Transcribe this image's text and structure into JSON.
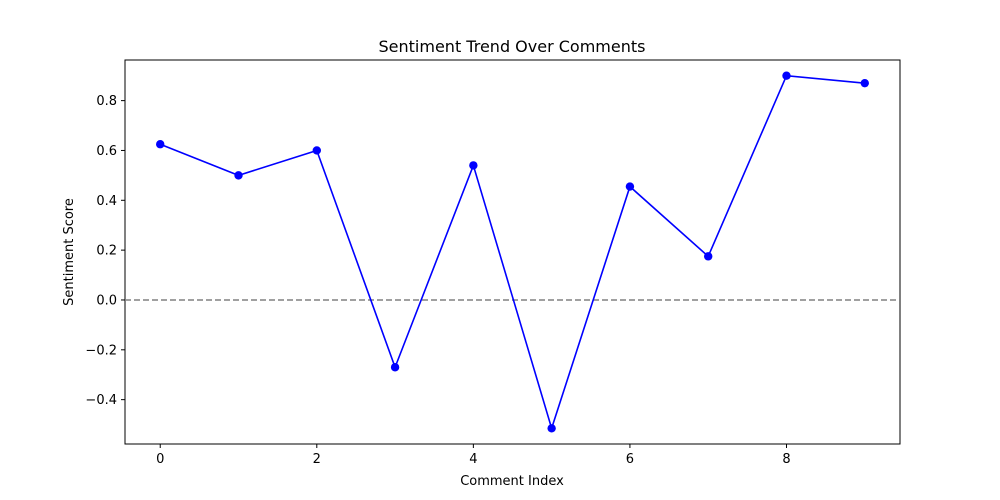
{
  "chart_data": {
    "type": "line",
    "title": "Sentiment Trend Over Comments",
    "xlabel": "Comment Index",
    "ylabel": "Sentiment Score",
    "x": [
      0,
      1,
      2,
      3,
      4,
      5,
      6,
      7,
      8,
      9
    ],
    "series": [
      {
        "values": [
          0.625,
          0.5,
          0.6,
          -0.27,
          0.54,
          -0.515,
          0.455,
          0.175,
          0.9,
          0.87
        ],
        "color": "#0000ff",
        "marker": "circle"
      }
    ],
    "reference_line": {
      "y": 0.0,
      "style": "dashed",
      "color": "#808080"
    },
    "xlim": [
      -0.45,
      9.45
    ],
    "ylim": [
      -0.578,
      0.963
    ],
    "x_ticks": [
      0,
      2,
      4,
      6,
      8
    ],
    "x_tick_labels": [
      "0",
      "2",
      "4",
      "6",
      "8"
    ],
    "y_ticks": [
      -0.4,
      -0.2,
      0.0,
      0.2,
      0.4,
      0.6,
      0.8
    ],
    "y_tick_labels": [
      "−0.4",
      "−0.2",
      "0.0",
      "0.2",
      "0.4",
      "0.6",
      "0.8"
    ],
    "grid": false,
    "legend": "none"
  }
}
